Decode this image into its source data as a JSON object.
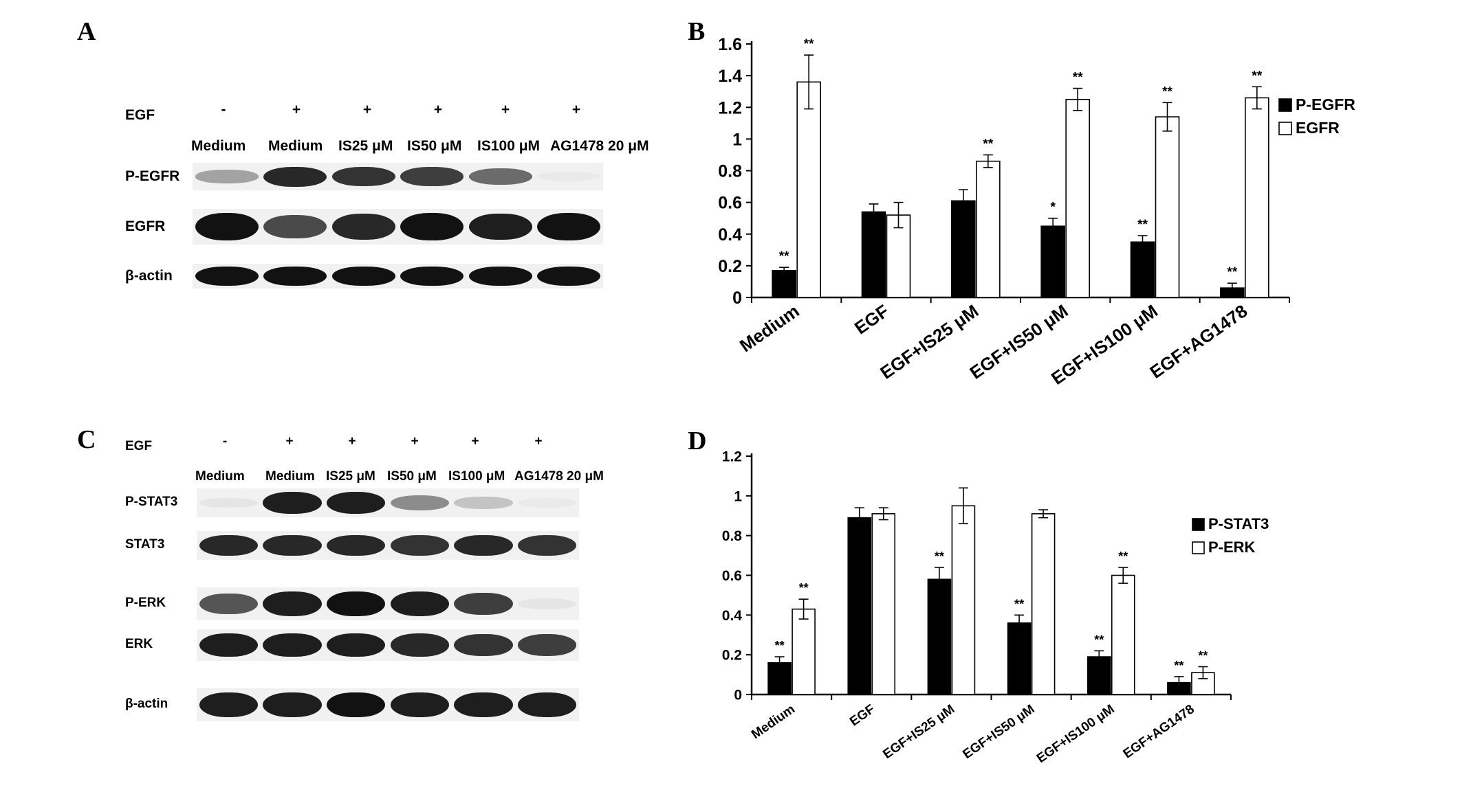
{
  "panels": {
    "A": {
      "letter": "A",
      "egf_label": "EGF",
      "lane_signs": [
        "-",
        "+",
        "+",
        "+",
        "+",
        "+"
      ],
      "conditions": [
        "Medium",
        "Medium",
        "IS25 μM",
        "IS50 μM",
        "IS100 μM",
        "AG1478  20 μM"
      ],
      "rows": [
        {
          "label": "P-EGFR",
          "intensity": [
            0.35,
            0.9,
            0.85,
            0.8,
            0.6,
            0.03
          ]
        },
        {
          "label": "EGFR",
          "intensity": [
            1.0,
            0.75,
            0.9,
            1.0,
            0.95,
            1.0
          ]
        },
        {
          "label": "β-actin",
          "intensity": [
            1.0,
            1.0,
            1.0,
            1.0,
            1.0,
            1.0
          ]
        }
      ]
    },
    "C": {
      "letter": "C",
      "egf_label": "EGF",
      "lane_signs": [
        "-",
        "+",
        "+",
        "+",
        "+",
        "+"
      ],
      "conditions": [
        "Medium",
        "Medium",
        "IS25 μM",
        "IS50 μM",
        "IS100 μM",
        "AG1478  20 μM"
      ],
      "rows": [
        {
          "label": "P-STAT3",
          "intensity": [
            0.05,
            0.95,
            0.95,
            0.45,
            0.2,
            0.02
          ]
        },
        {
          "label": "STAT3",
          "intensity": [
            0.9,
            0.9,
            0.9,
            0.85,
            0.9,
            0.85
          ]
        },
        {
          "label": "P-ERK",
          "intensity": [
            0.7,
            0.95,
            1.0,
            0.95,
            0.8,
            0.05
          ]
        },
        {
          "label": "ERK",
          "intensity": [
            0.95,
            0.95,
            0.95,
            0.9,
            0.85,
            0.8
          ]
        },
        {
          "label": "β-actin",
          "intensity": [
            0.95,
            0.95,
            1.0,
            0.95,
            0.95,
            0.95
          ]
        }
      ]
    },
    "B": {
      "letter": "B"
    },
    "D": {
      "letter": "D"
    }
  },
  "chart_data": [
    {
      "panel": "B",
      "type": "bar",
      "categories": [
        "Medium",
        "EGF",
        "EGF+IS25 μM",
        "EGF+IS50 μM",
        "EGF+IS100 μM",
        "EGF+AG1478"
      ],
      "series": [
        {
          "name": "P-EGFR",
          "color": "#000000",
          "values": [
            0.17,
            0.54,
            0.61,
            0.45,
            0.35,
            0.06
          ],
          "errors": [
            0.02,
            0.05,
            0.07,
            0.05,
            0.04,
            0.03
          ],
          "annotations": [
            "**",
            "",
            "",
            "*",
            "**",
            "**"
          ]
        },
        {
          "name": "EGFR",
          "color": "#ffffff",
          "values": [
            1.36,
            0.52,
            0.86,
            1.25,
            1.14,
            1.26
          ],
          "errors": [
            0.17,
            0.08,
            0.04,
            0.07,
            0.09,
            0.07
          ],
          "annotations": [
            "**",
            "",
            "**",
            "**",
            "**",
            "**"
          ]
        }
      ],
      "yticks": [
        "0",
        "0.2",
        "0.4",
        "0.6",
        "0.8",
        "1",
        "1.2",
        "1.4",
        "1.6"
      ],
      "ylim": [
        0,
        1.6
      ],
      "legend_position": "right"
    },
    {
      "panel": "D",
      "type": "bar",
      "categories": [
        "Medium",
        "EGF",
        "EGF+IS25 μM",
        "EGF+IS50 μM",
        "EGF+IS100 μM",
        "EGF+AG1478"
      ],
      "series": [
        {
          "name": "P-STAT3",
          "color": "#000000",
          "values": [
            0.16,
            0.89,
            0.58,
            0.36,
            0.19,
            0.06
          ],
          "errors": [
            0.03,
            0.05,
            0.06,
            0.04,
            0.03,
            0.03
          ],
          "annotations": [
            "**",
            "",
            "**",
            "**",
            "**",
            "**"
          ]
        },
        {
          "name": "P-ERK",
          "color": "#ffffff",
          "values": [
            0.43,
            0.91,
            0.95,
            0.91,
            0.6,
            0.11
          ],
          "errors": [
            0.05,
            0.03,
            0.09,
            0.02,
            0.04,
            0.03
          ],
          "annotations": [
            "**",
            "",
            "",
            "",
            "**",
            "**"
          ]
        }
      ],
      "yticks": [
        "0",
        "0.2",
        "0.4",
        "0.6",
        "0.8",
        "1",
        "1.2"
      ],
      "ylim": [
        0,
        1.2
      ],
      "legend_position": "right"
    }
  ]
}
